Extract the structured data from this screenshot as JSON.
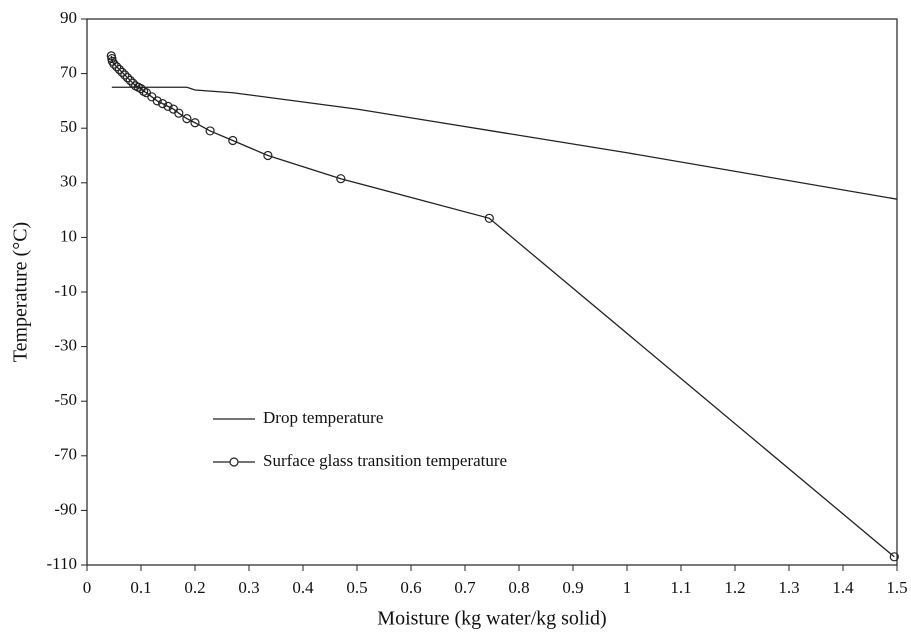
{
  "chart_data": {
    "type": "line",
    "x_label": "Moisture (kg water/kg solid)",
    "y_label": "Temperature (°C)",
    "xlim": [
      0,
      1.5
    ],
    "xticks": [
      0,
      0.1,
      0.2,
      0.3,
      0.4,
      0.5,
      0.6,
      0.7,
      0.8,
      0.9,
      1,
      1.1,
      1.2,
      1.3,
      1.4,
      1.5
    ],
    "ylim": [
      -110,
      90
    ],
    "yticks": [
      -110,
      -90,
      -70,
      -50,
      -30,
      -10,
      10,
      30,
      50,
      70,
      90
    ],
    "grid": false,
    "legend": "lower left",
    "series": [
      {
        "name": "Drop temperature",
        "color": "#222222",
        "markers": false,
        "x": [
          0.046,
          0.185,
          0.2,
          0.27,
          0.5,
          0.75,
          1.0,
          1.5
        ],
        "values": [
          65,
          65,
          64,
          63,
          57,
          49,
          41,
          24
        ]
      },
      {
        "name": "Surface glass transition temperature",
        "color": "#222222",
        "markers": true,
        "x": [
          0.045,
          0.046,
          0.047,
          0.05,
          0.055,
          0.06,
          0.065,
          0.07,
          0.075,
          0.08,
          0.085,
          0.09,
          0.095,
          0.1,
          0.105,
          0.11,
          0.12,
          0.13,
          0.14,
          0.15,
          0.16,
          0.17,
          0.185,
          0.2,
          0.228,
          0.27,
          0.335,
          0.47,
          0.745,
          1.495
        ],
        "values": [
          76.5,
          75.5,
          74.5,
          73.5,
          72.5,
          71.5,
          70.5,
          69.5,
          68.5,
          67.5,
          66.5,
          65.5,
          65,
          64.5,
          63.5,
          63,
          61.5,
          60,
          59,
          58,
          57,
          55.5,
          53.5,
          52,
          49,
          45.5,
          40,
          31.5,
          17,
          -107
        ]
      }
    ]
  }
}
